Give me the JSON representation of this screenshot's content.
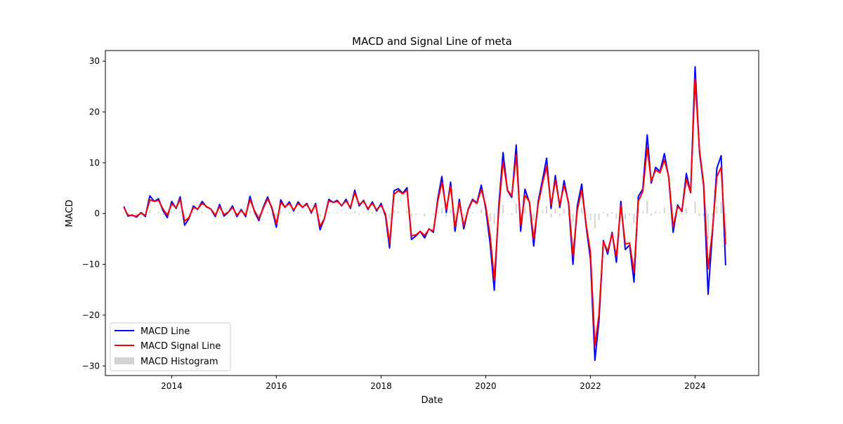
{
  "chart_data": {
    "type": "line",
    "title": "MACD and Signal Line of meta",
    "xlabel": "Date",
    "ylabel": "MACD",
    "xlim": [
      "2012-09-25",
      "2025-03-20"
    ],
    "ylim": [
      -31.9,
      32.1
    ],
    "x_ticks": [
      {
        "date": "2014-01-01",
        "label": "2014"
      },
      {
        "date": "2016-01-01",
        "label": "2016"
      },
      {
        "date": "2018-01-01",
        "label": "2018"
      },
      {
        "date": "2020-01-01",
        "label": "2020"
      },
      {
        "date": "2022-01-01",
        "label": "2022"
      },
      {
        "date": "2024-01-01",
        "label": "2024"
      }
    ],
    "y_ticks": [
      {
        "value": 30,
        "label": "30"
      },
      {
        "value": 20,
        "label": "20"
      },
      {
        "value": 10,
        "label": "10"
      },
      {
        "value": 0,
        "label": "0"
      },
      {
        "value": -10,
        "label": "−10"
      },
      {
        "value": -20,
        "label": "−20"
      },
      {
        "value": -30,
        "label": "−30"
      }
    ],
    "grid": false,
    "legend_position": "lower-left",
    "series": [
      {
        "name": "MACD Line",
        "color": "#0000ff",
        "kind": "line",
        "x": [
          "2013-02-01",
          "2013-03-01",
          "2013-04-01",
          "2013-05-01",
          "2013-06-01",
          "2013-07-01",
          "2013-08-01",
          "2013-09-01",
          "2013-10-01",
          "2013-11-01",
          "2013-12-01",
          "2014-01-01",
          "2014-02-01",
          "2014-03-01",
          "2014-04-01",
          "2014-05-01",
          "2014-06-01",
          "2014-07-01",
          "2014-08-01",
          "2014-09-01",
          "2014-10-01",
          "2014-11-01",
          "2014-12-01",
          "2015-01-01",
          "2015-02-01",
          "2015-03-01",
          "2015-04-01",
          "2015-05-01",
          "2015-06-01",
          "2015-07-01",
          "2015-08-01",
          "2015-09-01",
          "2015-10-01",
          "2015-11-01",
          "2015-12-01",
          "2016-01-01",
          "2016-02-01",
          "2016-03-01",
          "2016-04-01",
          "2016-05-01",
          "2016-06-01",
          "2016-07-01",
          "2016-08-01",
          "2016-09-01",
          "2016-10-01",
          "2016-11-01",
          "2016-12-01",
          "2017-01-01",
          "2017-02-01",
          "2017-03-01",
          "2017-04-01",
          "2017-05-01",
          "2017-06-01",
          "2017-07-01",
          "2017-08-01",
          "2017-09-01",
          "2017-10-01",
          "2017-11-01",
          "2017-12-01",
          "2018-01-01",
          "2018-02-01",
          "2018-03-01",
          "2018-04-01",
          "2018-05-01",
          "2018-06-01",
          "2018-07-01",
          "2018-08-01",
          "2018-09-01",
          "2018-10-01",
          "2018-11-01",
          "2018-12-01",
          "2019-01-01",
          "2019-02-01",
          "2019-03-01",
          "2019-04-01",
          "2019-05-01",
          "2019-06-01",
          "2019-07-01",
          "2019-08-01",
          "2019-09-01",
          "2019-10-01",
          "2019-11-01",
          "2019-12-01",
          "2020-01-01",
          "2020-02-01",
          "2020-03-01",
          "2020-04-01",
          "2020-05-01",
          "2020-06-01",
          "2020-07-01",
          "2020-08-01",
          "2020-09-01",
          "2020-10-01",
          "2020-11-01",
          "2020-12-01",
          "2021-01-01",
          "2021-02-01",
          "2021-03-01",
          "2021-04-01",
          "2021-05-01",
          "2021-06-01",
          "2021-07-01",
          "2021-08-01",
          "2021-09-01",
          "2021-10-01",
          "2021-11-01",
          "2021-12-01",
          "2022-01-01",
          "2022-02-01",
          "2022-03-01",
          "2022-04-01",
          "2022-05-01",
          "2022-06-01",
          "2022-07-01",
          "2022-08-01",
          "2022-09-01",
          "2022-10-01",
          "2022-11-01",
          "2022-12-01",
          "2023-01-01",
          "2023-02-01",
          "2023-03-01",
          "2023-04-01",
          "2023-05-01",
          "2023-06-01",
          "2023-07-01",
          "2023-08-01",
          "2023-09-01",
          "2023-10-01",
          "2023-11-01",
          "2023-12-01",
          "2024-01-01",
          "2024-02-01",
          "2024-03-01",
          "2024-04-01",
          "2024-05-01",
          "2024-06-01",
          "2024-07-01",
          "2024-08-01"
        ],
        "values": [
          1.4,
          -0.5,
          -0.3,
          -0.7,
          0.2,
          -0.6,
          3.5,
          2.4,
          2.9,
          0.6,
          -0.8,
          2.4,
          1.0,
          3.3,
          -2.3,
          -1.0,
          1.5,
          0.8,
          2.4,
          1.3,
          0.9,
          -0.6,
          1.8,
          -0.5,
          0.3,
          1.5,
          -0.6,
          0.8,
          -0.6,
          3.4,
          0.4,
          -1.4,
          1.2,
          3.3,
          1.0,
          -2.7,
          2.7,
          1.2,
          2.3,
          0.5,
          2.3,
          1.2,
          2.0,
          0.1,
          2.0,
          -3.2,
          -1.0,
          2.8,
          2.2,
          2.6,
          1.5,
          2.8,
          1.0,
          4.6,
          1.5,
          2.6,
          0.8,
          2.3,
          0.5,
          2.0,
          -0.5,
          -6.8,
          4.5,
          4.9,
          4.0,
          5.1,
          -5.1,
          -4.4,
          -3.5,
          -4.8,
          -3.0,
          -3.7,
          3.0,
          7.3,
          0.2,
          6.2,
          -3.5,
          2.8,
          -3.0,
          0.9,
          2.8,
          2.1,
          5.6,
          1.0,
          -6.0,
          -15.1,
          1.5,
          12.0,
          4.5,
          3.2,
          13.5,
          -3.5,
          4.8,
          2.2,
          -6.4,
          2.4,
          6.7,
          10.9,
          1.0,
          7.5,
          1.2,
          6.5,
          2.0,
          -10.0,
          1.5,
          5.8,
          -2.3,
          -9.0,
          -28.9,
          -21.3,
          -5.3,
          -8.0,
          -3.7,
          -9.6,
          2.4,
          -7.1,
          -6.2,
          -13.5,
          3.4,
          4.8,
          15.5,
          6.0,
          9.1,
          8.3,
          11.8,
          7.1,
          -3.7,
          1.7,
          0.4,
          7.9,
          4.1,
          28.9,
          12.0,
          5.4,
          -15.9,
          -3.8,
          8.9,
          11.4,
          -10.2
        ]
      },
      {
        "name": "MACD Signal Line",
        "color": "#ff0000",
        "kind": "line",
        "values": [
          1.2,
          -0.3,
          -0.4,
          -0.5,
          0.1,
          -0.4,
          2.7,
          2.4,
          2.6,
          0.9,
          -0.3,
          1.9,
          1.2,
          2.8,
          -1.5,
          -0.8,
          1.2,
          0.9,
          2.0,
          1.4,
          0.9,
          -0.3,
          1.4,
          -0.2,
          0.3,
          1.2,
          -0.3,
          0.6,
          -0.3,
          2.8,
          0.6,
          -1.0,
          1.0,
          2.9,
          1.2,
          -2.0,
          2.2,
          1.3,
          2.0,
          0.7,
          2.0,
          1.3,
          1.8,
          0.3,
          1.7,
          -2.5,
          -1.0,
          2.5,
          2.2,
          2.4,
          1.6,
          2.5,
          1.2,
          4.1,
          1.8,
          2.4,
          1.0,
          2.0,
          0.7,
          1.7,
          -0.1,
          -5.8,
          3.8,
          4.5,
          3.9,
          4.6,
          -4.4,
          -4.2,
          -3.5,
          -4.3,
          -3.1,
          -3.4,
          2.5,
          6.2,
          0.8,
          5.4,
          -2.6,
          2.2,
          -2.4,
          0.8,
          2.6,
          2.0,
          4.8,
          1.5,
          -4.4,
          -13.0,
          0.7,
          10.3,
          4.6,
          3.5,
          11.5,
          -2.4,
          3.6,
          2.3,
          -5.0,
          1.9,
          6.0,
          9.3,
          1.7,
          6.6,
          1.7,
          5.6,
          2.3,
          -8.3,
          0.7,
          4.7,
          -1.9,
          -7.7,
          -26.0,
          -20.0,
          -5.5,
          -7.4,
          -4.0,
          -8.5,
          1.6,
          -6.0,
          -5.8,
          -11.6,
          2.5,
          4.3,
          13.0,
          6.4,
          8.6,
          8.0,
          10.6,
          7.3,
          -2.6,
          1.4,
          0.6,
          6.8,
          4.1,
          26.5,
          12.5,
          5.9,
          -10.9,
          -3.4,
          7.3,
          9.1,
          -6.1
        ]
      },
      {
        "name": "MACD Histogram",
        "color": "#d3d3d3",
        "kind": "bar",
        "values": [
          0.2,
          -0.2,
          0.1,
          -0.2,
          0.1,
          -0.2,
          0.8,
          0.0,
          0.3,
          -0.3,
          -0.5,
          0.5,
          -0.2,
          0.5,
          -0.8,
          -0.2,
          0.3,
          -0.1,
          0.4,
          -0.1,
          0.0,
          -0.3,
          0.4,
          -0.3,
          0.0,
          0.3,
          -0.3,
          0.2,
          -0.3,
          0.6,
          -0.2,
          -0.4,
          0.2,
          0.4,
          -0.2,
          -0.7,
          0.5,
          -0.1,
          0.3,
          -0.2,
          0.3,
          -0.1,
          0.2,
          -0.2,
          0.3,
          -0.7,
          0.0,
          0.3,
          0.0,
          0.2,
          -0.1,
          0.3,
          -0.2,
          0.5,
          -0.3,
          0.2,
          -0.2,
          0.3,
          -0.2,
          0.3,
          -0.4,
          -1.0,
          0.7,
          0.4,
          0.1,
          0.5,
          -0.7,
          -0.2,
          0.0,
          -0.5,
          0.1,
          -0.3,
          0.5,
          1.1,
          -0.6,
          0.8,
          -0.9,
          0.6,
          -0.6,
          0.1,
          0.2,
          0.1,
          0.8,
          -0.5,
          -1.6,
          -2.1,
          0.8,
          1.7,
          -0.1,
          -0.3,
          2.0,
          -1.1,
          1.2,
          -0.1,
          -1.4,
          0.5,
          0.7,
          1.6,
          -0.7,
          0.9,
          -0.5,
          0.9,
          -0.3,
          -1.7,
          0.8,
          1.1,
          -0.4,
          -1.3,
          -2.9,
          -1.3,
          0.2,
          -0.6,
          0.3,
          -1.1,
          0.8,
          -1.1,
          -0.4,
          -1.9,
          0.9,
          0.5,
          2.5,
          -0.4,
          0.5,
          0.3,
          1.2,
          -0.2,
          -1.1,
          0.3,
          -0.2,
          1.1,
          0.0,
          2.4,
          -0.5,
          -0.5,
          -5.0,
          -0.4,
          1.6,
          2.3,
          -4.1
        ]
      }
    ]
  }
}
